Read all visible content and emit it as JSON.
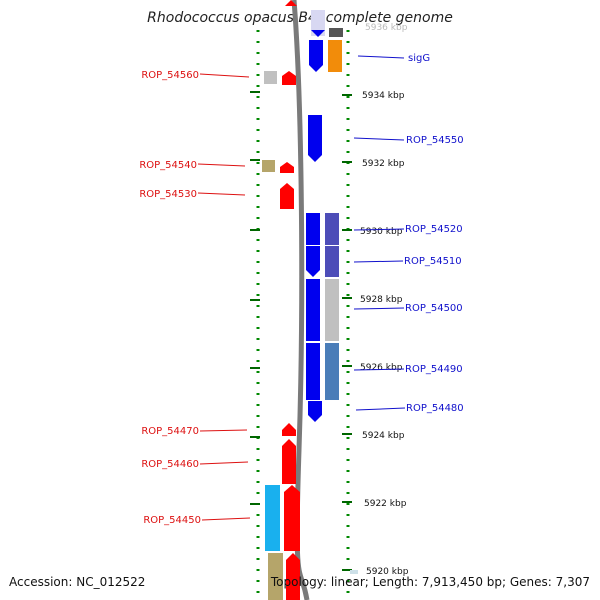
{
  "title": "Rhodococcus opacus B4, complete genome",
  "footer": {
    "accession": "Accession: NC_012522",
    "summary": "Topology: linear; Length: 7,913,450 bp; Genes: 7,307"
  },
  "scale": {
    "ticks": [
      {
        "kbp": 5936,
        "label": "5936 kbp"
      },
      {
        "kbp": 5934,
        "label": "5934 kbp"
      },
      {
        "kbp": 5932,
        "label": "5932 kbp"
      },
      {
        "kbp": 5930,
        "label": "5930 kbp"
      },
      {
        "kbp": 5928,
        "label": "5928 kbp"
      },
      {
        "kbp": 5926,
        "label": "5926 kbp"
      },
      {
        "kbp": 5924,
        "label": "5924 kbp"
      },
      {
        "kbp": 5922,
        "label": "5922 kbp"
      },
      {
        "kbp": 5920,
        "label": "5920 kbp"
      }
    ]
  },
  "genes_left": [
    {
      "label": "ROP_54560",
      "color": "#dd1111"
    },
    {
      "label": "ROP_54540",
      "color": "#dd1111"
    },
    {
      "label": "ROP_54530",
      "color": "#dd1111"
    },
    {
      "label": "ROP_54470",
      "color": "#dd1111"
    },
    {
      "label": "ROP_54460",
      "color": "#dd1111"
    },
    {
      "label": "ROP_54450",
      "color": "#dd1111"
    }
  ],
  "genes_right": [
    {
      "label": "sigG",
      "color": "#1111cc"
    },
    {
      "label": "ROP_54550",
      "color": "#1111cc"
    },
    {
      "label": "ROP_54520",
      "color": "#1111cc"
    },
    {
      "label": "ROP_54510",
      "color": "#1111cc"
    },
    {
      "label": "ROP_54500",
      "color": "#1111cc"
    },
    {
      "label": "ROP_54490",
      "color": "#1111cc"
    },
    {
      "label": "ROP_54480",
      "color": "#1111cc"
    }
  ],
  "colors": {
    "forward_strand": "#ff0000",
    "reverse_strand": "#0000ee",
    "backbone": "#808080",
    "ruler_dots": "#008800"
  }
}
